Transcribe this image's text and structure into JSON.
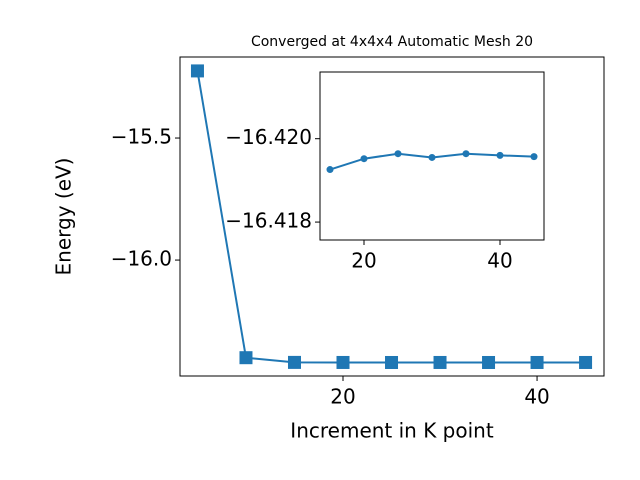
{
  "chart_data": [
    {
      "type": "line",
      "title": "Converged at 4x4x4 Automatic Mesh 20",
      "x_label": "Increment in K point",
      "y_label": "Energy (eV)",
      "x": [
        5,
        10,
        15,
        20,
        25,
        30,
        35,
        40,
        45
      ],
      "series": [
        {
          "color": "#1f77b4",
          "marker": "square",
          "values": [
            -15.225,
            -16.4,
            -16.41926,
            -16.41952,
            -16.41964,
            -16.41955,
            -16.41964,
            -16.4196,
            -16.41957
          ]
        }
      ],
      "xlim": [
        3.2,
        46.9
      ],
      "ylim": [
        -16.475,
        -15.168
      ],
      "xticks": [
        20,
        40
      ],
      "yticks": [
        {
          "value": -15.5,
          "label": "−15.5"
        },
        {
          "value": -16,
          "label": "−16.0"
        }
      ]
    },
    {
      "type": "line",
      "x": [
        15,
        20,
        25,
        30,
        35,
        40,
        45
      ],
      "series": [
        {
          "color": "#1f77b4",
          "marker": "circle",
          "values": [
            -16.41926,
            -16.41952,
            -16.41964,
            -16.41955,
            -16.41964,
            -16.4196,
            -16.41957
          ]
        }
      ],
      "xlim": [
        13.53,
        46.47
      ],
      "ylim": [
        -16.41757,
        -16.4216
      ],
      "xticks": [
        20,
        40
      ],
      "yticks": [
        {
          "value": -16.42,
          "label": "−16.420"
        },
        {
          "value": -16.418,
          "label": "−16.418"
        }
      ]
    }
  ]
}
